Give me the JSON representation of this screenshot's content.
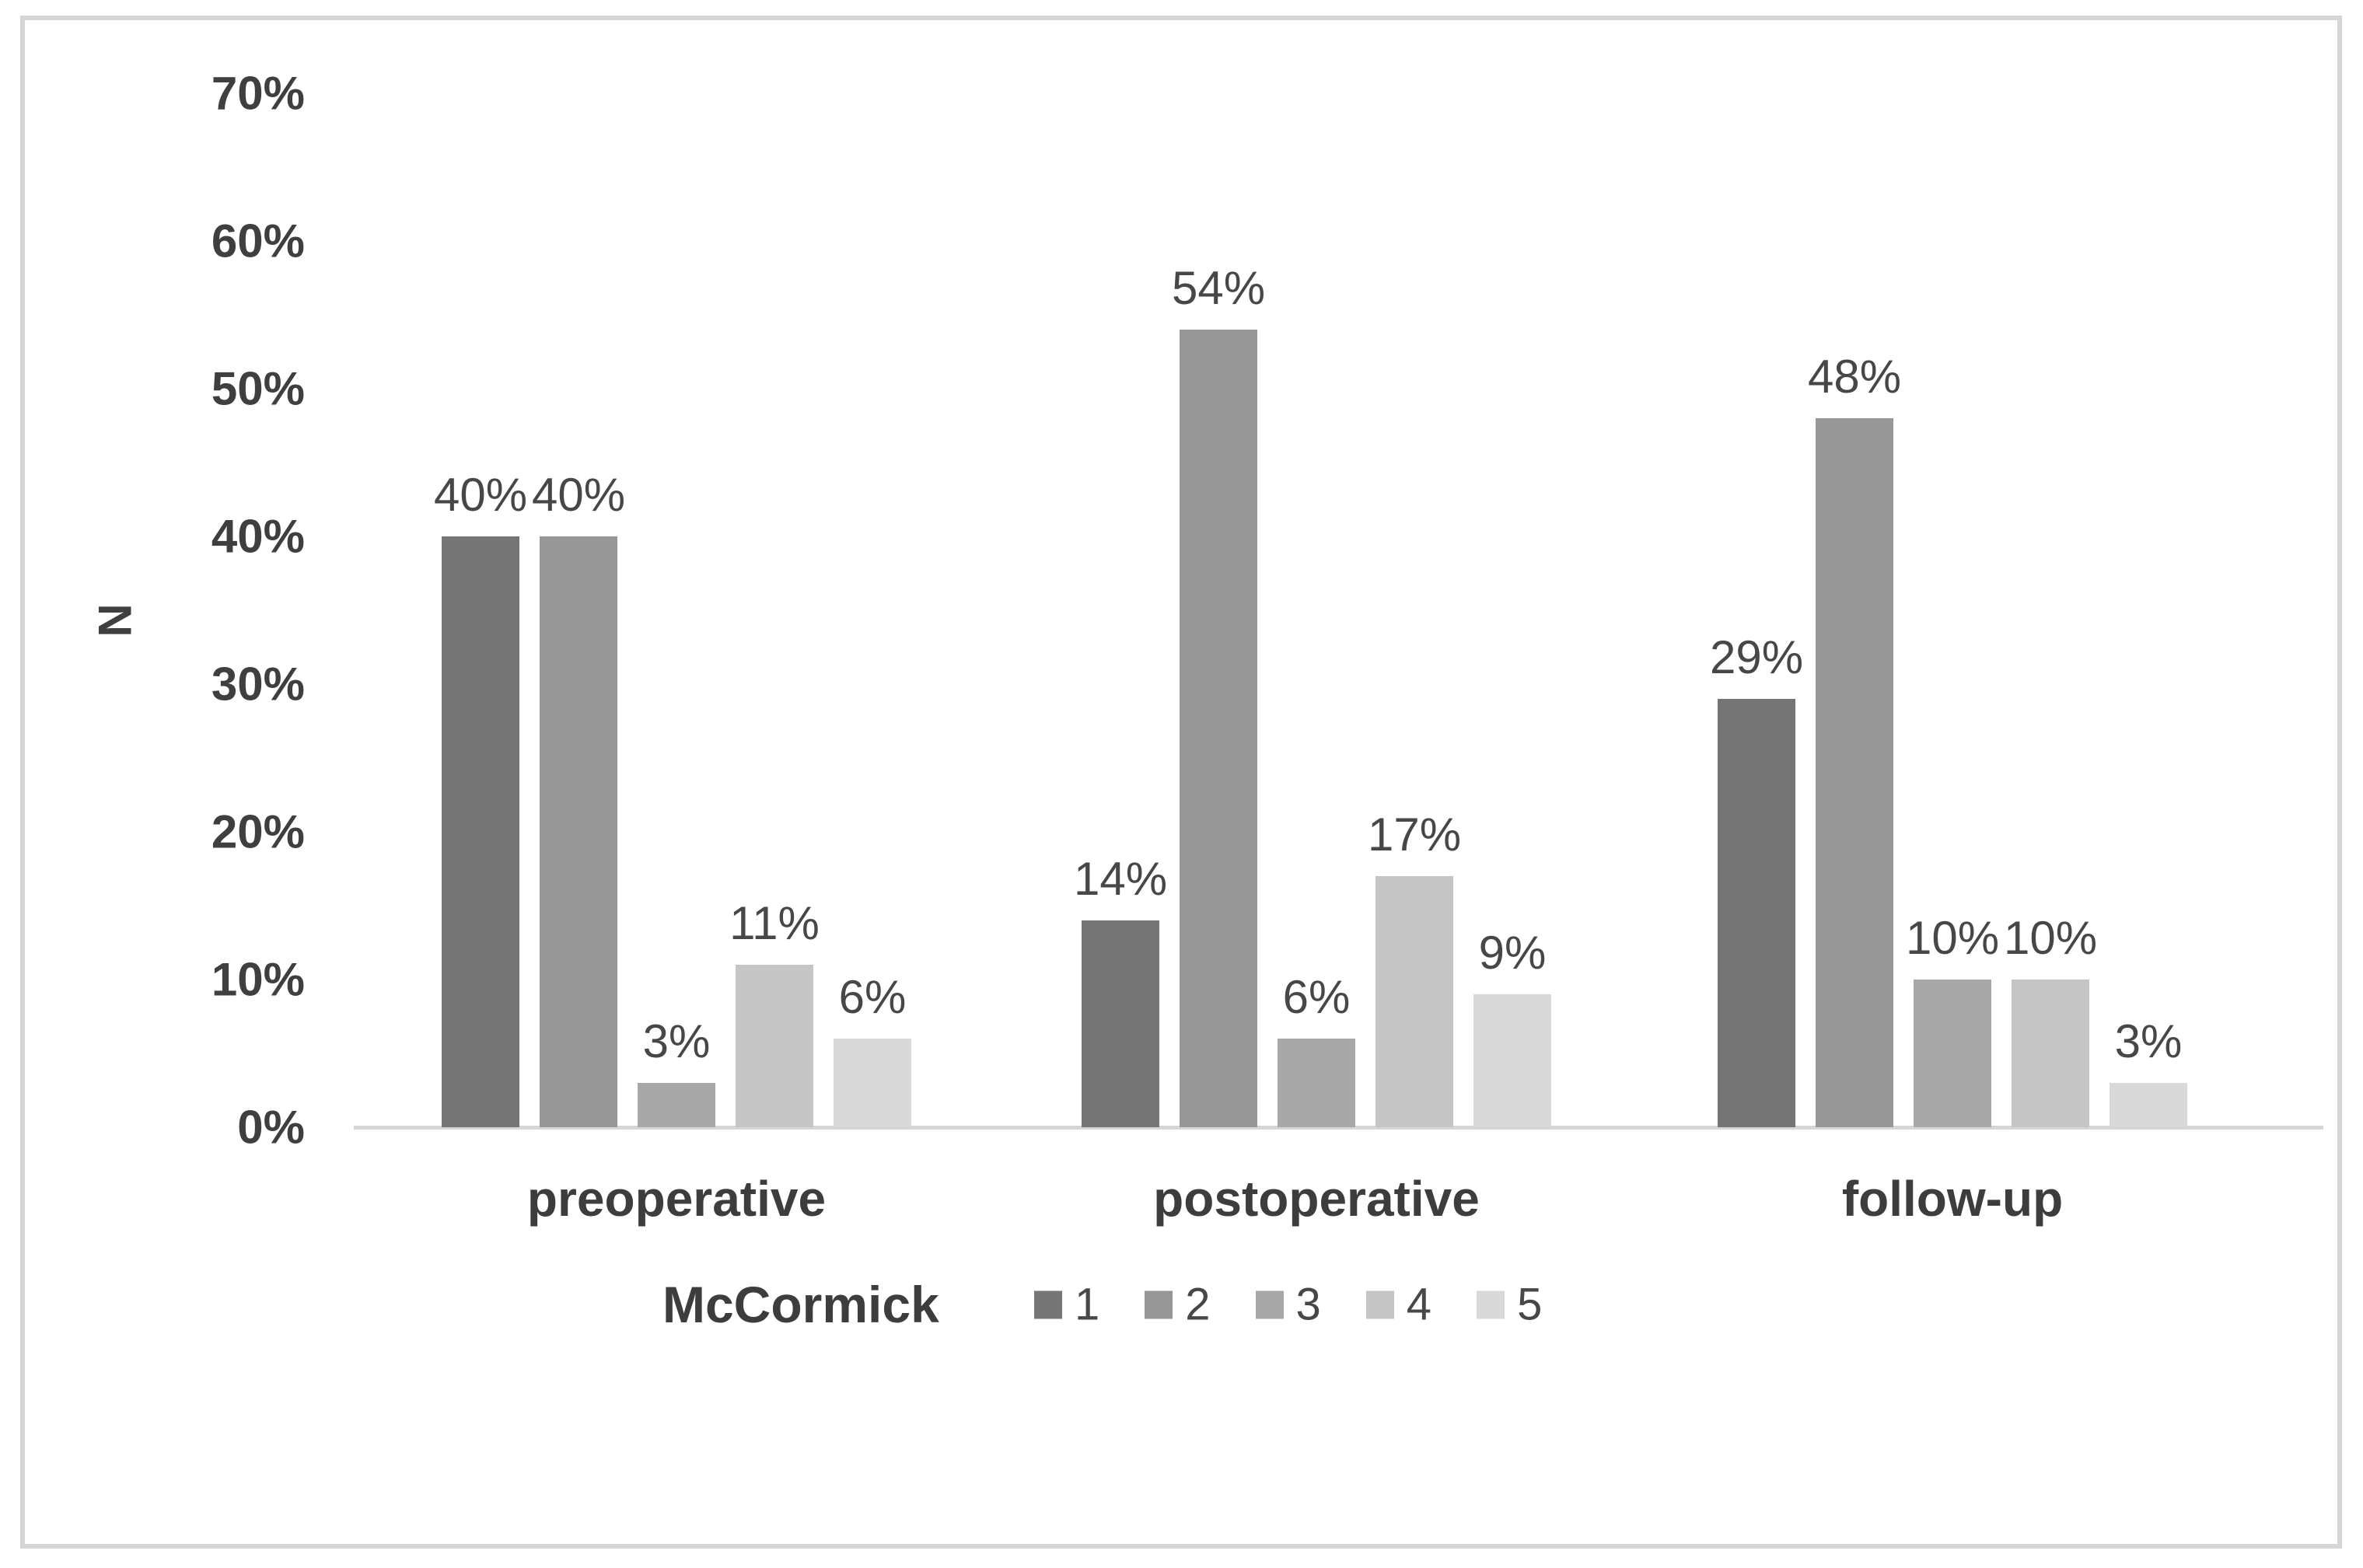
{
  "window": {
    "background": "#ffffff",
    "border_color": "#d5d5d5"
  },
  "chart_data": {
    "type": "bar",
    "title": "",
    "xlabel": "",
    "ylabel": "N",
    "ylim": [
      0,
      70
    ],
    "gridlines": false,
    "axis_line_color": "#d6d6d6",
    "text_color": "#3f3f3f",
    "yticks": [
      {
        "value": 0,
        "label": "0%"
      },
      {
        "value": 10,
        "label": "10%"
      },
      {
        "value": 20,
        "label": "20%"
      },
      {
        "value": 30,
        "label": "30%"
      },
      {
        "value": 40,
        "label": "40%"
      },
      {
        "value": 50,
        "label": "50%"
      },
      {
        "value": 60,
        "label": "60%"
      },
      {
        "value": 70,
        "label": "70%"
      }
    ],
    "categories": [
      "preoperative",
      "postoperative",
      "follow-up"
    ],
    "legend": {
      "title": "McCormick",
      "position": "bottom",
      "entries": [
        "1",
        "2",
        "3",
        "4",
        "5"
      ]
    },
    "series": [
      {
        "name": "1",
        "color": "#757575",
        "values": [
          40,
          14,
          29
        ],
        "labels": [
          "40%",
          "14%",
          "29%"
        ]
      },
      {
        "name": "2",
        "color": "#969696",
        "values": [
          40,
          54,
          48
        ],
        "labels": [
          "40%",
          "54%",
          "48%"
        ]
      },
      {
        "name": "3",
        "color": "#a8a8a8",
        "values": [
          3,
          6,
          10
        ],
        "labels": [
          "3%",
          "6%",
          "10%"
        ]
      },
      {
        "name": "4",
        "color": "#c5c5c5",
        "values": [
          11,
          17,
          10
        ],
        "labels": [
          "11%",
          "17%",
          "10%"
        ]
      },
      {
        "name": "5",
        "color": "#d9d9d9",
        "values": [
          6,
          9,
          3
        ],
        "labels": [
          "6%",
          "9%",
          "3%"
        ]
      }
    ]
  }
}
